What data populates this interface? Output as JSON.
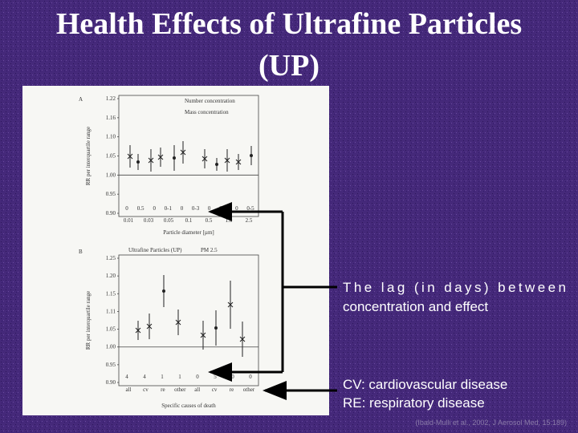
{
  "header": {
    "title_line1": "Health Effects of Ultrafine Particles",
    "title_line2": "(UP)"
  },
  "figure": {
    "panels": [
      {
        "label": "A",
        "y_label": "RR per interquartile range",
        "yticks": [
          "1.22",
          "1.16",
          "1.10",
          "1.05",
          "1.00",
          "0.95",
          "0.90"
        ],
        "legend": [
          "Number concentration",
          "Mass concentration"
        ],
        "lags": [
          "0",
          "0.5",
          "0",
          "0-1",
          "0",
          "0-3",
          "0",
          "0-3",
          "0",
          "0-5"
        ],
        "xticks": [
          "0.01",
          "0.03",
          "0.05",
          "0.1",
          "0.5",
          "1.0",
          "2.5"
        ],
        "x_label": "Particle diameter [µm]"
      },
      {
        "label": "B",
        "y_label": "RR per interquartile range",
        "yticks": [
          "1.25",
          "1.20",
          "1.15",
          "1.11",
          "1.05",
          "1.00",
          "0.95",
          "0.90"
        ],
        "legend": [
          "Ultrafine Particles (UP)",
          "PM 2.5"
        ],
        "lags": [
          "4",
          "4",
          "1",
          "1",
          "0",
          "5",
          "0",
          "0"
        ],
        "xticks": [
          "all",
          "cv",
          "re",
          "other",
          "all",
          "cv",
          "re",
          "other"
        ],
        "x_label": "Specific causes of death"
      }
    ]
  },
  "annotations": {
    "lag_line1": "The lag (in days) between",
    "lag_line2": "concentration and effect",
    "cv": "CV:  cardiovascular disease",
    "re": "RE:  respiratory disease"
  },
  "citation": "(Ibald-Mulli et al., 2002, J Aerosol Med, 15:189)"
}
